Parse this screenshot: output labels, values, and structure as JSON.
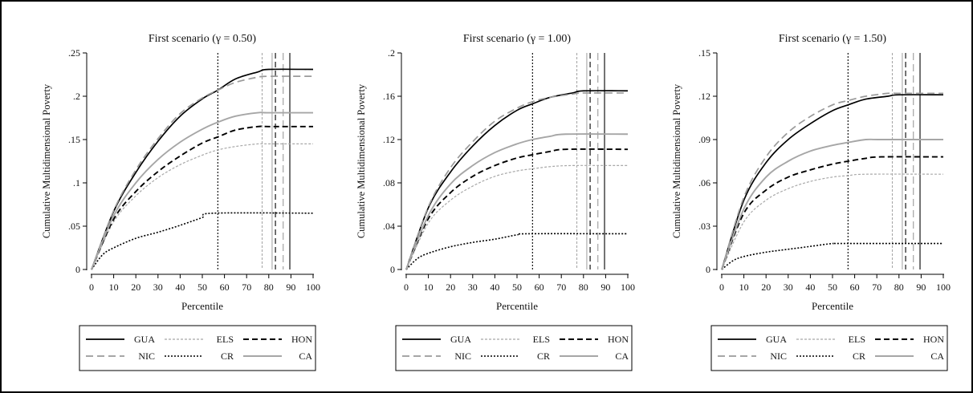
{
  "chart_data": [
    {
      "type": "line",
      "title": "First scenario (γ = 0.50)",
      "xlabel": "Percentile",
      "ylabel": "Cumulative Multidimensional Poverty",
      "xlim": [
        0,
        100
      ],
      "ylim": [
        0,
        0.25
      ],
      "xticks": [
        0,
        10,
        20,
        30,
        40,
        50,
        60,
        70,
        80,
        90,
        100
      ],
      "xtick_labels": [
        "0",
        "10",
        "20",
        "30",
        "40",
        "50",
        "60",
        "70",
        "80",
        "90",
        "100"
      ],
      "yticks": [
        0,
        0.05,
        0.1,
        0.15,
        0.2,
        0.25
      ],
      "ytick_labels": [
        "0",
        ".05",
        ".1",
        ".15",
        ".2",
        ".25"
      ],
      "series": [
        {
          "name": "GUA",
          "style": "solid-black",
          "points": [
            [
              0,
              0
            ],
            [
              10,
              0.067
            ],
            [
              20,
              0.112
            ],
            [
              30,
              0.148
            ],
            [
              40,
              0.177
            ],
            [
              50,
              0.197
            ],
            [
              57,
              0.207
            ],
            [
              65,
              0.22
            ],
            [
              75,
              0.228
            ],
            [
              80,
              0.231
            ],
            [
              100,
              0.231
            ]
          ]
        },
        {
          "name": "NIC",
          "style": "longdash-gray",
          "points": [
            [
              0,
              0
            ],
            [
              10,
              0.068
            ],
            [
              20,
              0.115
            ],
            [
              30,
              0.151
            ],
            [
              40,
              0.18
            ],
            [
              50,
              0.198
            ],
            [
              57,
              0.207
            ],
            [
              65,
              0.216
            ],
            [
              75,
              0.222
            ],
            [
              80,
              0.223
            ],
            [
              100,
              0.223
            ]
          ]
        },
        {
          "name": "ELS",
          "style": "dash-lightgray",
          "points": [
            [
              0,
              0
            ],
            [
              10,
              0.055
            ],
            [
              20,
              0.085
            ],
            [
              30,
              0.106
            ],
            [
              40,
              0.121
            ],
            [
              50,
              0.132
            ],
            [
              57,
              0.138
            ],
            [
              65,
              0.142
            ],
            [
              75,
              0.145
            ],
            [
              80,
              0.145
            ],
            [
              100,
              0.145
            ]
          ]
        },
        {
          "name": "CR",
          "style": "dot-black",
          "points": [
            [
              0,
              0
            ],
            [
              5,
              0.017
            ],
            [
              10,
              0.025
            ],
            [
              20,
              0.036
            ],
            [
              30,
              0.043
            ],
            [
              40,
              0.051
            ],
            [
              50,
              0.06
            ],
            [
              55,
              0.065
            ],
            [
              100,
              0.065
            ]
          ]
        },
        {
          "name": "HON",
          "style": "dash-black",
          "points": [
            [
              0,
              0
            ],
            [
              10,
              0.058
            ],
            [
              20,
              0.09
            ],
            [
              30,
              0.113
            ],
            [
              40,
              0.131
            ],
            [
              50,
              0.146
            ],
            [
              57,
              0.153
            ],
            [
              65,
              0.161
            ],
            [
              75,
              0.165
            ],
            [
              80,
              0.165
            ],
            [
              100,
              0.165
            ]
          ]
        },
        {
          "name": "CA",
          "style": "solid-gray",
          "points": [
            [
              0,
              0
            ],
            [
              10,
              0.062
            ],
            [
              20,
              0.1
            ],
            [
              30,
              0.127
            ],
            [
              40,
              0.147
            ],
            [
              50,
              0.162
            ],
            [
              57,
              0.17
            ],
            [
              65,
              0.177
            ],
            [
              75,
              0.181
            ],
            [
              80,
              0.181
            ],
            [
              100,
              0.181
            ]
          ]
        }
      ],
      "vlines": [
        {
          "x": 57,
          "style": "dot-black"
        },
        {
          "x": 77,
          "style": "dash-lightgray"
        },
        {
          "x": 81.5,
          "style": "solid-gray"
        },
        {
          "x": 83,
          "style": "dash-black"
        },
        {
          "x": 86.5,
          "style": "longdash-gray"
        },
        {
          "x": 89.5,
          "style": "solid-black"
        }
      ],
      "legend": {
        "placement": "bottom",
        "columns": 3,
        "order": [
          "GUA",
          "ELS",
          "HON",
          "NIC",
          "CR",
          "CA"
        ]
      },
      "grid": false
    },
    {
      "type": "line",
      "title": "First scenario (γ = 1.00)",
      "xlabel": "Percentile",
      "ylabel": "Cumulative Multidimensional Poverty",
      "xlim": [
        0,
        100
      ],
      "ylim": [
        0,
        0.2
      ],
      "xticks": [
        0,
        10,
        20,
        30,
        40,
        50,
        60,
        70,
        80,
        90,
        100
      ],
      "xtick_labels": [
        "0",
        "10",
        "20",
        "30",
        "40",
        "50",
        "60",
        "70",
        "80",
        "90",
        "100"
      ],
      "yticks": [
        0,
        0.04,
        0.08,
        0.12,
        0.16,
        0.2
      ],
      "ytick_labels": [
        "0",
        ".04",
        ".08",
        ".12",
        ".16",
        ".2"
      ],
      "series": [
        {
          "name": "GUA",
          "style": "solid-black",
          "points": [
            [
              0,
              0
            ],
            [
              10,
              0.057
            ],
            [
              20,
              0.09
            ],
            [
              30,
              0.114
            ],
            [
              40,
              0.133
            ],
            [
              50,
              0.147
            ],
            [
              57,
              0.153
            ],
            [
              65,
              0.159
            ],
            [
              75,
              0.163
            ],
            [
              80,
              0.165
            ],
            [
              100,
              0.165
            ]
          ]
        },
        {
          "name": "NIC",
          "style": "longdash-gray",
          "points": [
            [
              0,
              0
            ],
            [
              10,
              0.058
            ],
            [
              20,
              0.094
            ],
            [
              30,
              0.118
            ],
            [
              40,
              0.137
            ],
            [
              50,
              0.149
            ],
            [
              57,
              0.155
            ],
            [
              65,
              0.159
            ],
            [
              75,
              0.162
            ],
            [
              80,
              0.163
            ],
            [
              100,
              0.163
            ]
          ]
        },
        {
          "name": "ELS",
          "style": "dash-lightgray",
          "points": [
            [
              0,
              0
            ],
            [
              10,
              0.043
            ],
            [
              20,
              0.064
            ],
            [
              30,
              0.077
            ],
            [
              40,
              0.086
            ],
            [
              50,
              0.091
            ],
            [
              57,
              0.093
            ],
            [
              65,
              0.095
            ],
            [
              75,
              0.096
            ],
            [
              100,
              0.096
            ]
          ]
        },
        {
          "name": "CR",
          "style": "dot-black",
          "points": [
            [
              0,
              0
            ],
            [
              5,
              0.01
            ],
            [
              10,
              0.015
            ],
            [
              20,
              0.021
            ],
            [
              30,
              0.025
            ],
            [
              40,
              0.028
            ],
            [
              50,
              0.032
            ],
            [
              55,
              0.033
            ],
            [
              100,
              0.033
            ]
          ]
        },
        {
          "name": "HON",
          "style": "dash-black",
          "points": [
            [
              0,
              0
            ],
            [
              10,
              0.047
            ],
            [
              20,
              0.071
            ],
            [
              30,
              0.086
            ],
            [
              40,
              0.096
            ],
            [
              50,
              0.103
            ],
            [
              57,
              0.106
            ],
            [
              65,
              0.109
            ],
            [
              72,
              0.111
            ],
            [
              100,
              0.111
            ]
          ]
        },
        {
          "name": "CA",
          "style": "solid-gray",
          "points": [
            [
              0,
              0
            ],
            [
              10,
              0.05
            ],
            [
              20,
              0.079
            ],
            [
              30,
              0.096
            ],
            [
              40,
              0.108
            ],
            [
              50,
              0.116
            ],
            [
              57,
              0.12
            ],
            [
              65,
              0.123
            ],
            [
              72,
              0.125
            ],
            [
              100,
              0.125
            ]
          ]
        }
      ],
      "vlines": [
        {
          "x": 57,
          "style": "dot-black"
        },
        {
          "x": 77,
          "style": "dash-lightgray"
        },
        {
          "x": 81.5,
          "style": "solid-gray"
        },
        {
          "x": 83,
          "style": "dash-black"
        },
        {
          "x": 86.5,
          "style": "longdash-gray"
        },
        {
          "x": 89.5,
          "style": "solid-black"
        }
      ],
      "legend": {
        "placement": "bottom",
        "columns": 3,
        "order": [
          "GUA",
          "ELS",
          "HON",
          "NIC",
          "CR",
          "CA"
        ]
      },
      "grid": false
    },
    {
      "type": "line",
      "title": "First scenario (γ = 1.50)",
      "xlabel": "Percentile",
      "ylabel": "Cumulative Multidimensional Poverty",
      "xlim": [
        0,
        100
      ],
      "ylim": [
        0,
        0.15
      ],
      "xticks": [
        0,
        10,
        20,
        30,
        40,
        50,
        60,
        70,
        80,
        90,
        100
      ],
      "xtick_labels": [
        "0",
        "10",
        "20",
        "30",
        "40",
        "50",
        "60",
        "70",
        "80",
        "90",
        "100"
      ],
      "yticks": [
        0,
        0.03,
        0.06,
        0.09,
        0.12,
        0.15
      ],
      "ytick_labels": [
        "0",
        ".03",
        ".06",
        ".09",
        ".12",
        ".15"
      ],
      "series": [
        {
          "name": "GUA",
          "style": "solid-black",
          "points": [
            [
              0,
              0
            ],
            [
              10,
              0.048
            ],
            [
              20,
              0.074
            ],
            [
              30,
              0.09
            ],
            [
              40,
              0.101
            ],
            [
              50,
              0.11
            ],
            [
              57,
              0.114
            ],
            [
              65,
              0.118
            ],
            [
              75,
              0.12
            ],
            [
              80,
              0.121
            ],
            [
              100,
              0.121
            ]
          ]
        },
        {
          "name": "NIC",
          "style": "longdash-gray",
          "points": [
            [
              0,
              0
            ],
            [
              10,
              0.05
            ],
            [
              20,
              0.078
            ],
            [
              30,
              0.095
            ],
            [
              40,
              0.106
            ],
            [
              50,
              0.114
            ],
            [
              57,
              0.117
            ],
            [
              65,
              0.12
            ],
            [
              75,
              0.122
            ],
            [
              80,
              0.122
            ],
            [
              100,
              0.122
            ]
          ]
        },
        {
          "name": "ELS",
          "style": "dash-lightgray",
          "points": [
            [
              0,
              0
            ],
            [
              10,
              0.033
            ],
            [
              20,
              0.048
            ],
            [
              30,
              0.056
            ],
            [
              40,
              0.061
            ],
            [
              50,
              0.064
            ],
            [
              57,
              0.065
            ],
            [
              65,
              0.066
            ],
            [
              100,
              0.066
            ]
          ]
        },
        {
          "name": "CR",
          "style": "dot-black",
          "points": [
            [
              0,
              0
            ],
            [
              5,
              0.006
            ],
            [
              10,
              0.009
            ],
            [
              20,
              0.012
            ],
            [
              30,
              0.014
            ],
            [
              40,
              0.016
            ],
            [
              50,
              0.018
            ],
            [
              55,
              0.018
            ],
            [
              100,
              0.018
            ]
          ]
        },
        {
          "name": "HON",
          "style": "dash-black",
          "points": [
            [
              0,
              0
            ],
            [
              10,
              0.039
            ],
            [
              20,
              0.055
            ],
            [
              30,
              0.064
            ],
            [
              40,
              0.069
            ],
            [
              50,
              0.073
            ],
            [
              57,
              0.075
            ],
            [
              65,
              0.077
            ],
            [
              72,
              0.078
            ],
            [
              100,
              0.078
            ]
          ]
        },
        {
          "name": "CA",
          "style": "solid-gray",
          "points": [
            [
              0,
              0
            ],
            [
              10,
              0.042
            ],
            [
              20,
              0.064
            ],
            [
              30,
              0.075
            ],
            [
              40,
              0.082
            ],
            [
              50,
              0.086
            ],
            [
              57,
              0.088
            ],
            [
              65,
              0.09
            ],
            [
              72,
              0.09
            ],
            [
              100,
              0.09
            ]
          ]
        }
      ],
      "vlines": [
        {
          "x": 57,
          "style": "dot-black"
        },
        {
          "x": 77,
          "style": "dash-lightgray"
        },
        {
          "x": 81.5,
          "style": "solid-gray"
        },
        {
          "x": 83,
          "style": "dash-black"
        },
        {
          "x": 86.5,
          "style": "longdash-gray"
        },
        {
          "x": 89.5,
          "style": "solid-black"
        }
      ],
      "legend": {
        "placement": "bottom",
        "columns": 3,
        "order": [
          "GUA",
          "ELS",
          "HON",
          "NIC",
          "CR",
          "CA"
        ]
      },
      "grid": false
    }
  ],
  "styles": {
    "solid-black": {
      "color": "#000000",
      "dash": ""
    },
    "longdash-gray": {
      "color": "#9a9a9a",
      "dash": "9,5"
    },
    "dash-lightgray": {
      "color": "#a8a8a8",
      "dash": "3,2"
    },
    "dot-black": {
      "color": "#000000",
      "dash": "2,2"
    },
    "dash-black": {
      "color": "#000000",
      "dash": "7,4"
    },
    "solid-gray": {
      "color": "#a6a6a6",
      "dash": ""
    }
  }
}
